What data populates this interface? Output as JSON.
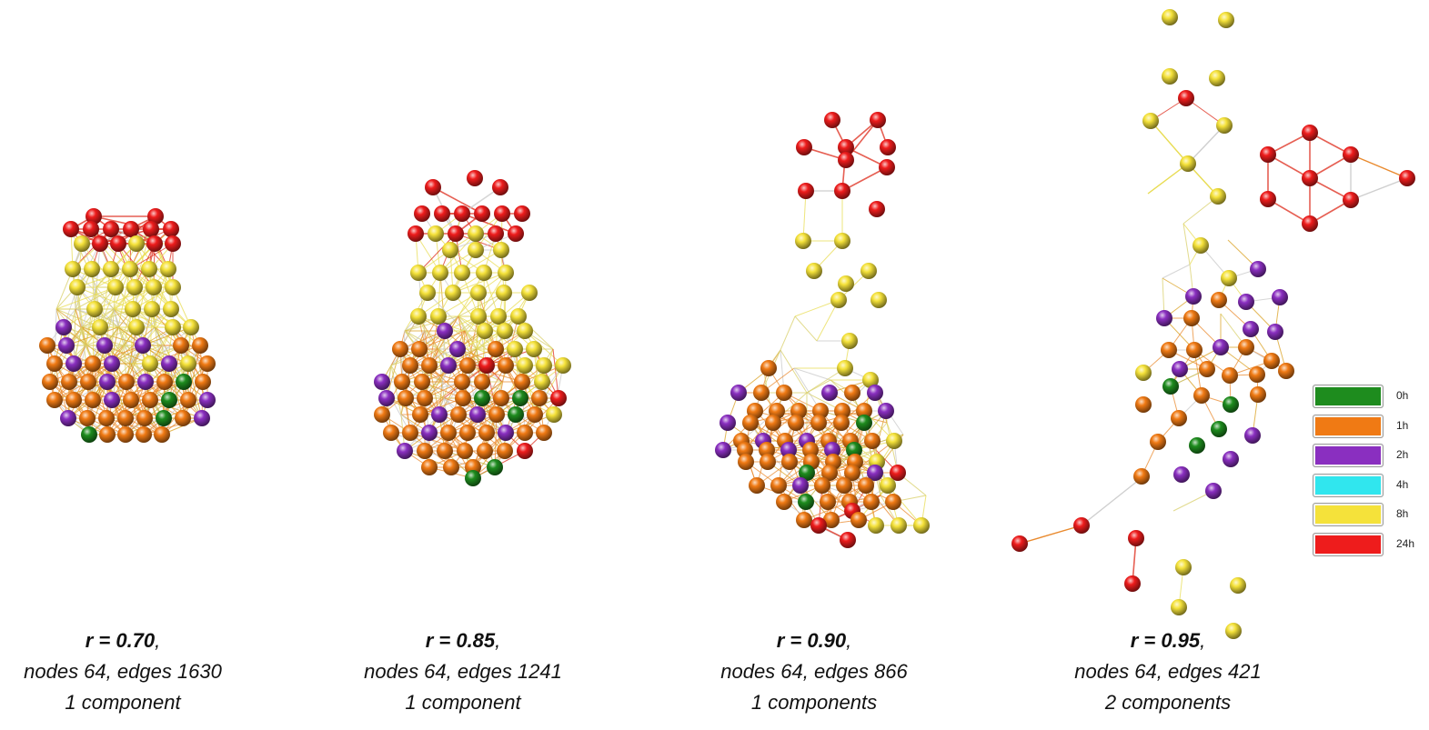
{
  "panels": [
    {
      "id": "p070",
      "r_label": "r = 0.70",
      "comma": ",",
      "stats": "nodes 64, edges 1630",
      "components": "1 component"
    },
    {
      "id": "p085",
      "r_label": "r = 0.85",
      "comma": ",",
      "stats": "nodes 64, edges 1241",
      "components": "1 component"
    },
    {
      "id": "p090",
      "r_label": "r = 0.90",
      "comma": ",",
      "stats": "nodes 64, edges 866",
      "components": "1 components"
    },
    {
      "id": "p095",
      "r_label": "r = 0.95",
      "comma": ",",
      "stats": "nodes 64, edges 421",
      "components": "2 components"
    }
  ],
  "legend": [
    {
      "label": "0h",
      "color": "#1e8c1e"
    },
    {
      "label": "1h",
      "color": "#f07a14"
    },
    {
      "label": "2h",
      "color": "#8a2fc0"
    },
    {
      "label": "4h",
      "color": "#30e6ee"
    },
    {
      "label": "8h",
      "color": "#f5e23a"
    },
    {
      "label": "24h",
      "color": "#ee1c1c"
    }
  ]
}
